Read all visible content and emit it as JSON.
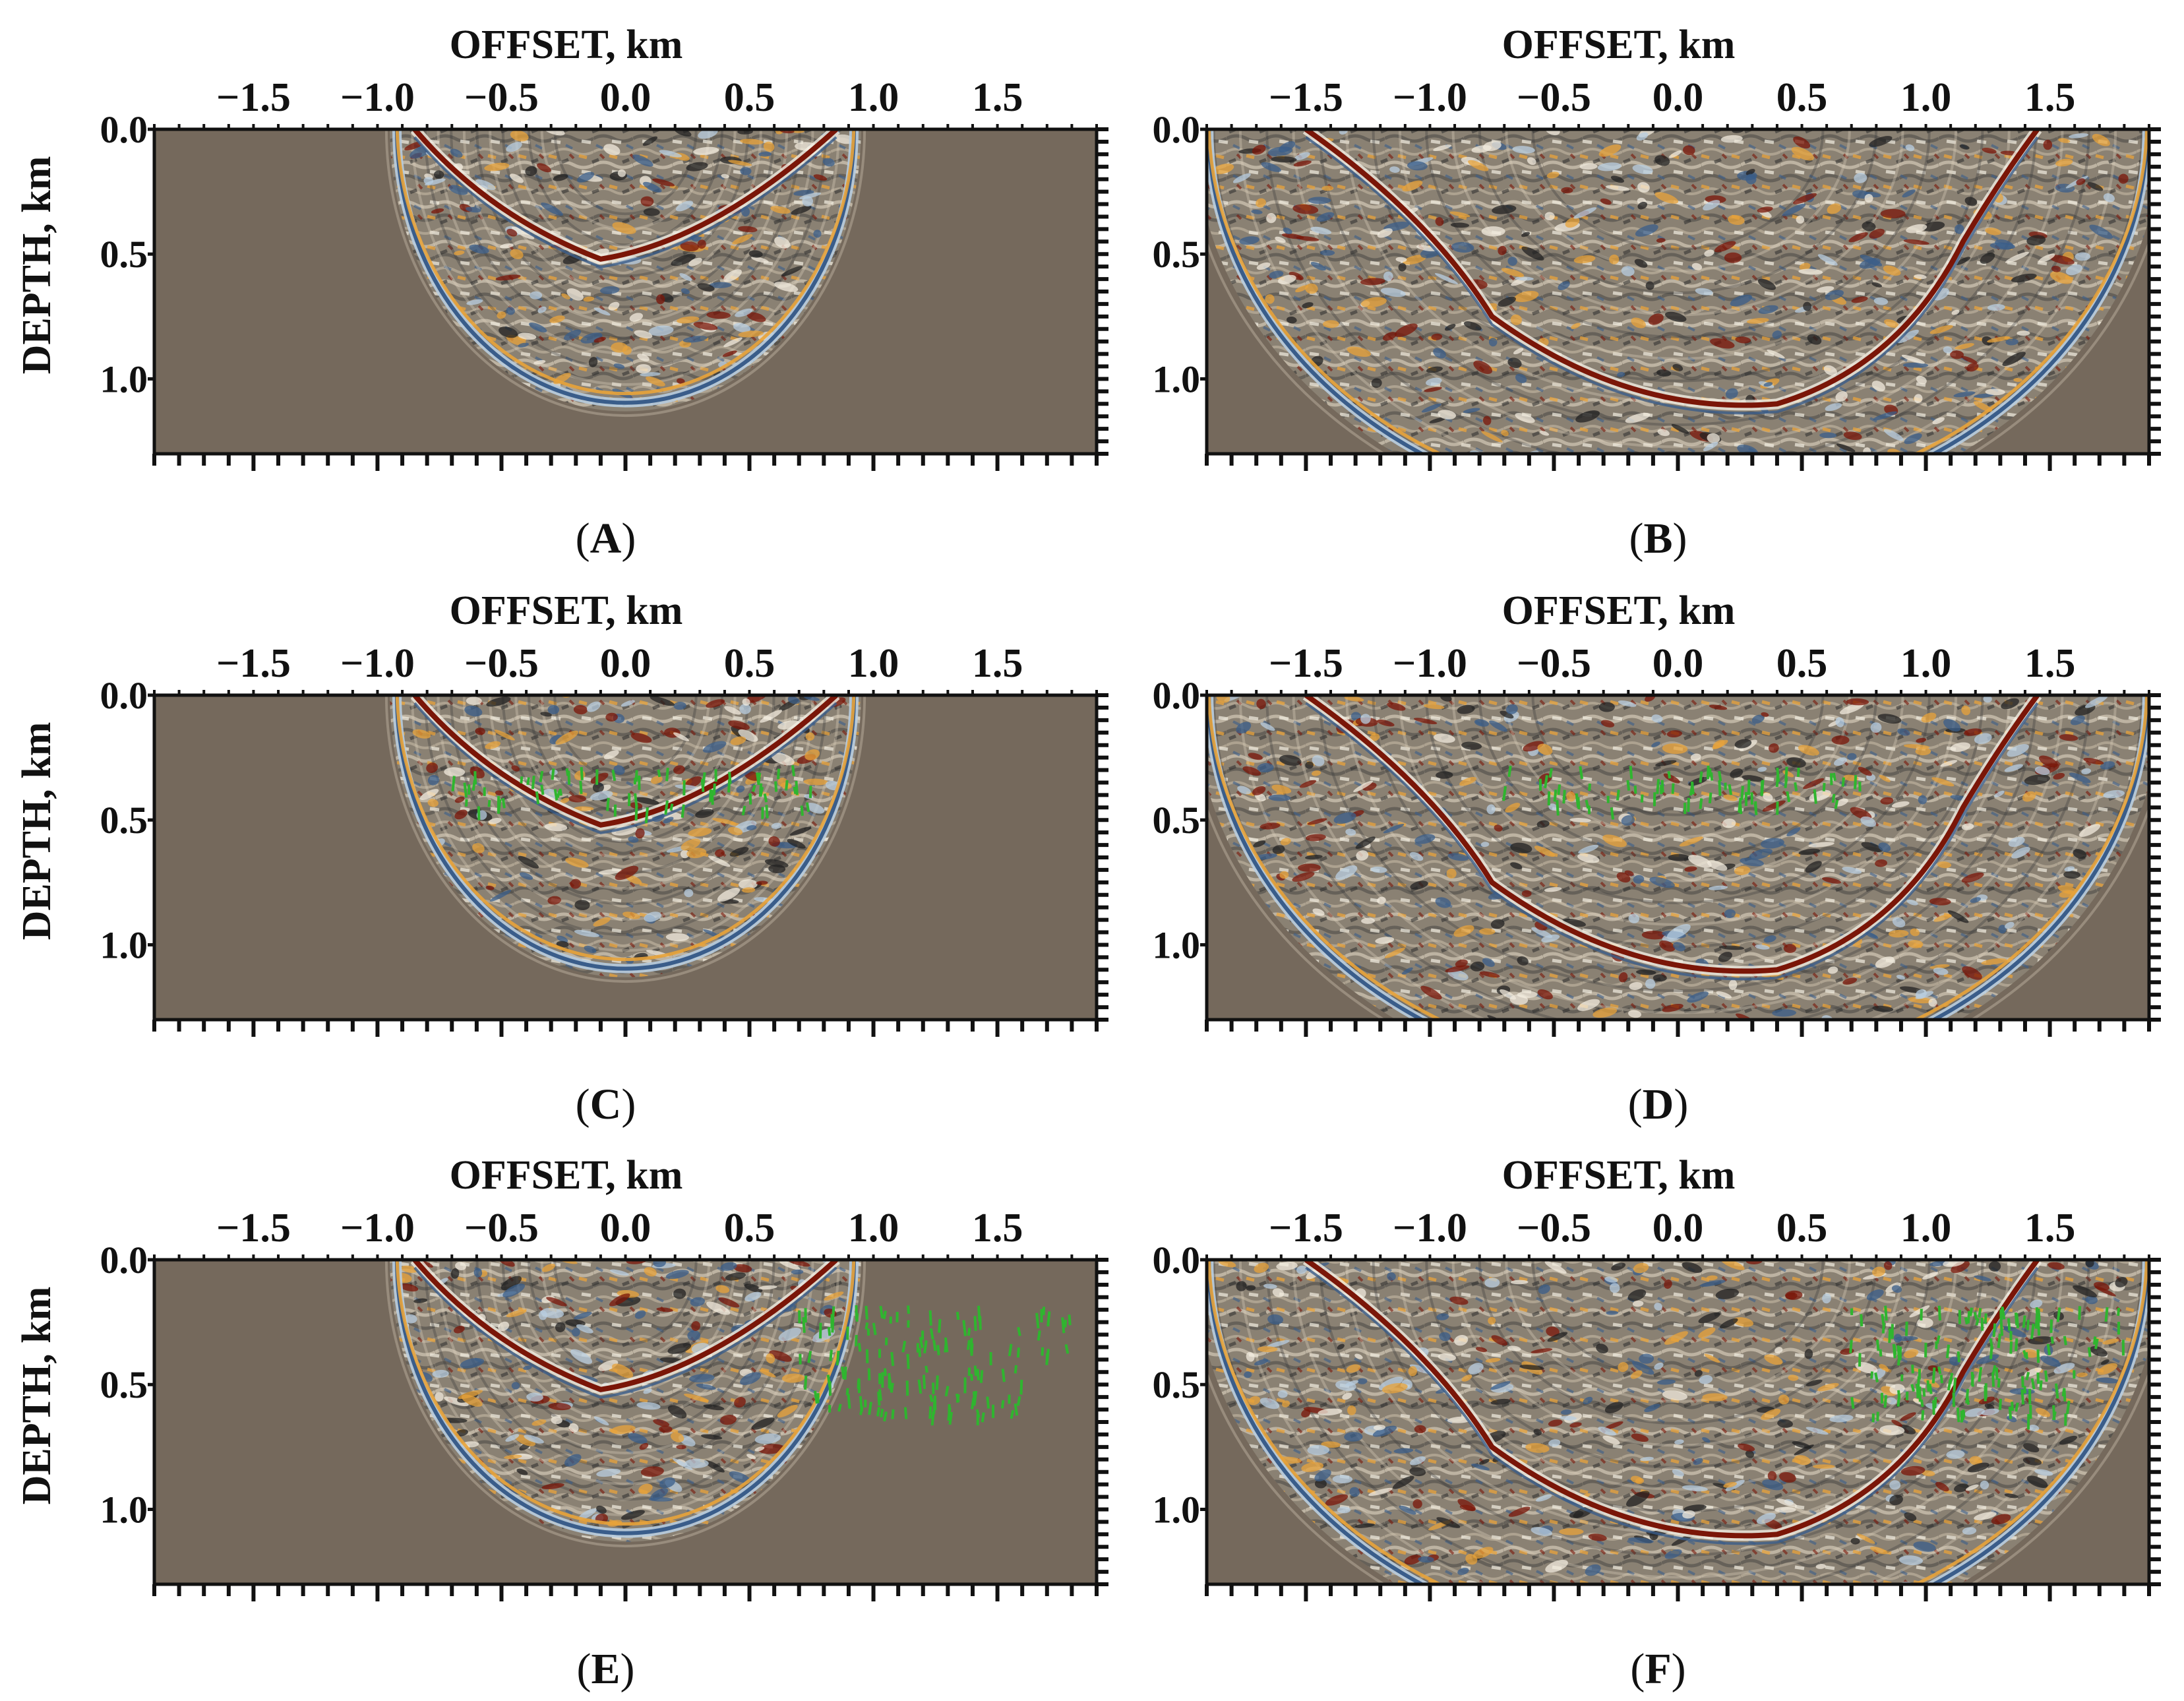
{
  "chart_data": {
    "type": "heatmap",
    "description_kind": "seismic-migration-image-grid",
    "panels": [
      {
        "id": "A",
        "label": "A",
        "footprint": "narrow",
        "green_markers": "none"
      },
      {
        "id": "B",
        "label": "B",
        "footprint": "wide",
        "green_markers": "none"
      },
      {
        "id": "C",
        "label": "C",
        "footprint": "narrow",
        "green_markers": "center"
      },
      {
        "id": "D",
        "label": "D",
        "footprint": "wide",
        "green_markers": "center"
      },
      {
        "id": "E",
        "label": "E",
        "footprint": "narrow",
        "green_markers": "right"
      },
      {
        "id": "F",
        "label": "F",
        "footprint": "wide",
        "green_markers": "right"
      }
    ],
    "xlabel": "OFFSET, km",
    "ylabel": "DEPTH, km",
    "xticks": [
      -1.5,
      -1.0,
      -0.5,
      0.0,
      0.5,
      1.0,
      1.5
    ],
    "xtick_labels": [
      "−1.5",
      "−1.0",
      "−0.5",
      "0.0",
      "0.5",
      "1.0",
      "1.5"
    ],
    "yticks": [
      0.0,
      0.5,
      1.0
    ],
    "ytick_labels": [
      "0.0",
      "0.5",
      "1.0"
    ],
    "xlim": [
      -1.9,
      1.9
    ],
    "ylim": [
      0.0,
      1.3
    ],
    "colors": {
      "background": "#75695c",
      "positive": "#7a1608",
      "positive_light": "#e8a33a",
      "negative": "#3a5d8a",
      "negative_light": "#b8cde0",
      "markers": "#2fb52f"
    }
  }
}
